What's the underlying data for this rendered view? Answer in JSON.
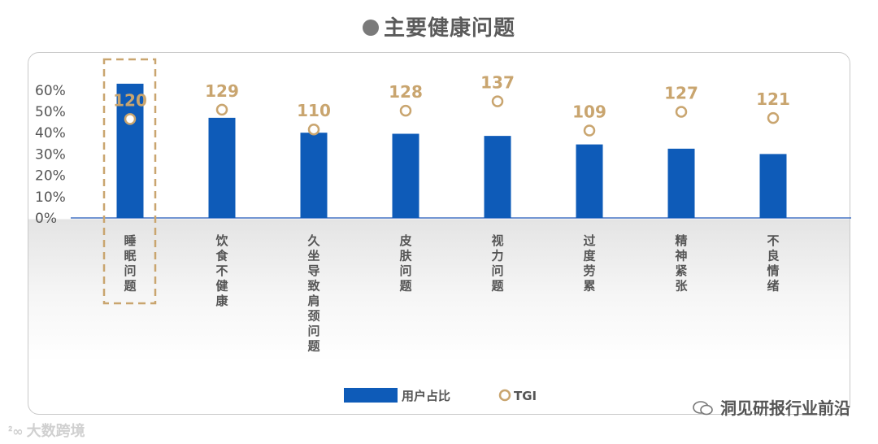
{
  "title": "主要健康问题",
  "chart_data": {
    "type": "bar",
    "categories": [
      "睡眠问题",
      "饮食不健康",
      "久坐导致肩颈问题",
      "皮肤问题",
      "视力问题",
      "过度劳累",
      "精神紧张",
      "不良情绪"
    ],
    "series": [
      {
        "name": "用户占比",
        "type": "bar",
        "values": [
          63,
          47,
          40,
          39.5,
          38.5,
          34.5,
          32.5,
          30
        ]
      },
      {
        "name": "TGI",
        "type": "scatter",
        "values": [
          120,
          129,
          110,
          128,
          137,
          109,
          127,
          121
        ]
      }
    ],
    "yticks": [
      "0%",
      "10%",
      "20%",
      "30%",
      "40%",
      "50%",
      "60%"
    ],
    "ylim": [
      0,
      65
    ],
    "legend": "bottom",
    "highlight_category": "睡眠问题",
    "colors": {
      "bar": "#0e5bb8",
      "tgi": "#c9a56f",
      "axis": "#4472c4"
    }
  },
  "watermarks": {
    "left": "大数跨境",
    "right": "洞见研报行业前沿"
  }
}
